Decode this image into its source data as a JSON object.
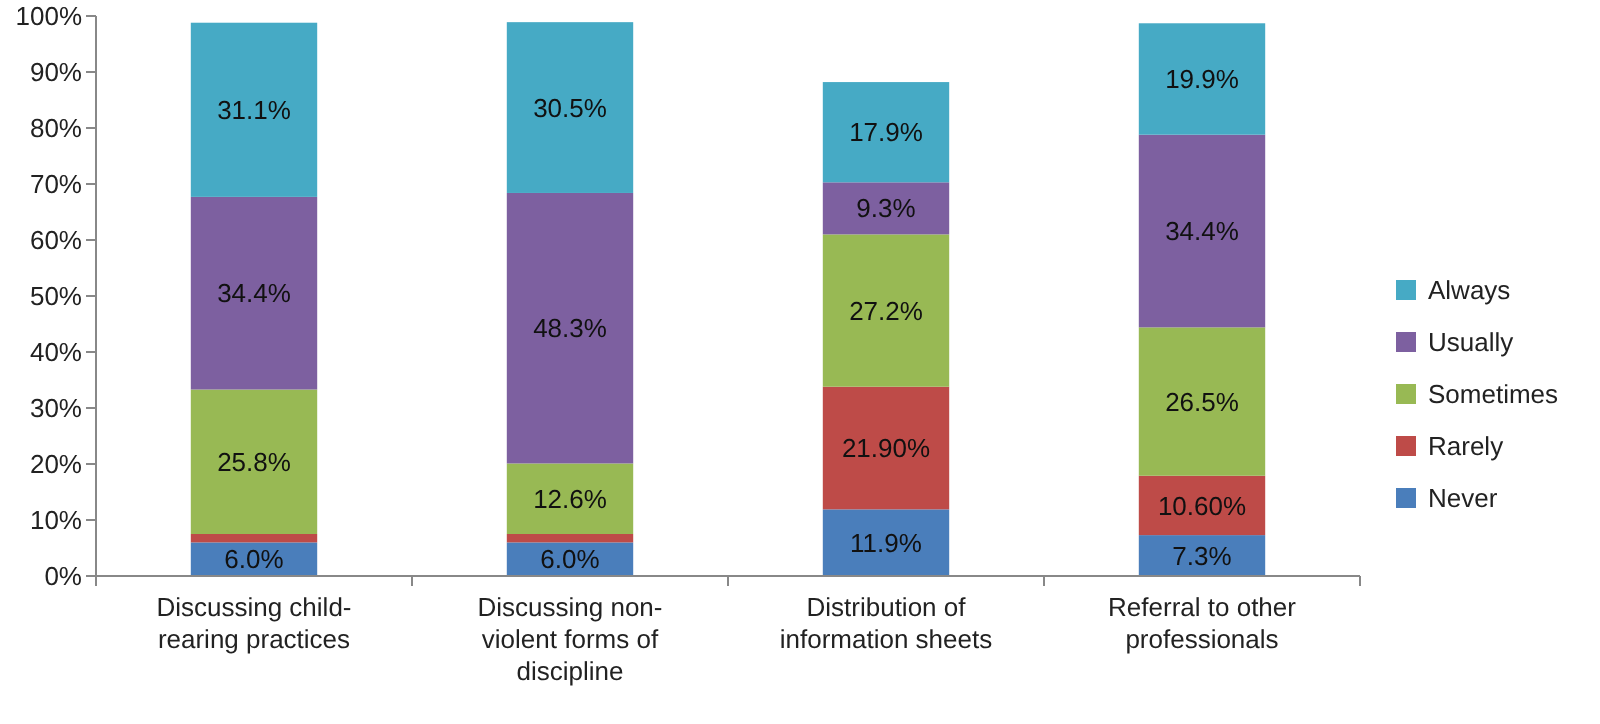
{
  "chart_data": {
    "type": "bar",
    "stacked": true,
    "categories": [
      "Discussing child-rearing practices",
      "Discussing non-violent forms of discipline",
      "Distribution of information sheets",
      "Referral to other professionals"
    ],
    "series": [
      {
        "name": "Never",
        "color": "#4a7ebb",
        "values": [
          6.0,
          6.0,
          11.9,
          7.3
        ],
        "value_labels": [
          "6.0%",
          "6.0%",
          "11.9%",
          "7.3%"
        ]
      },
      {
        "name": "Rarely",
        "color": "#be4b48",
        "values": [
          1.5,
          1.5,
          21.9,
          10.6
        ],
        "value_labels": [
          null,
          null,
          "21.90%",
          "10.60%"
        ]
      },
      {
        "name": "Sometimes",
        "color": "#98b954",
        "values": [
          25.8,
          12.6,
          27.2,
          26.5
        ],
        "value_labels": [
          "25.8%",
          "12.6%",
          "27.2%",
          "26.5%"
        ]
      },
      {
        "name": "Usually",
        "color": "#7d60a0",
        "values": [
          34.4,
          48.3,
          9.3,
          34.4
        ],
        "value_labels": [
          "34.4%",
          "48.3%",
          "9.3%",
          "34.4%"
        ]
      },
      {
        "name": "Always",
        "color": "#46aac5",
        "values": [
          31.1,
          30.5,
          17.9,
          19.9
        ],
        "value_labels": [
          "31.1%",
          "30.5%",
          "17.9%",
          "19.9%"
        ]
      }
    ],
    "ylim": [
      0,
      100
    ],
    "yticks": [
      {
        "value": 0,
        "label": "0%"
      },
      {
        "value": 10,
        "label": "10%"
      },
      {
        "value": 20,
        "label": "20%"
      },
      {
        "value": 30,
        "label": "30%"
      },
      {
        "value": 40,
        "label": "40%"
      },
      {
        "value": 50,
        "label": "50%"
      },
      {
        "value": 60,
        "label": "60%"
      },
      {
        "value": 70,
        "label": "70%"
      },
      {
        "value": 80,
        "label": "80%"
      },
      {
        "value": 90,
        "label": "90%"
      },
      {
        "value": 100,
        "label": "100%"
      }
    ],
    "grid": false,
    "legend": "right"
  }
}
